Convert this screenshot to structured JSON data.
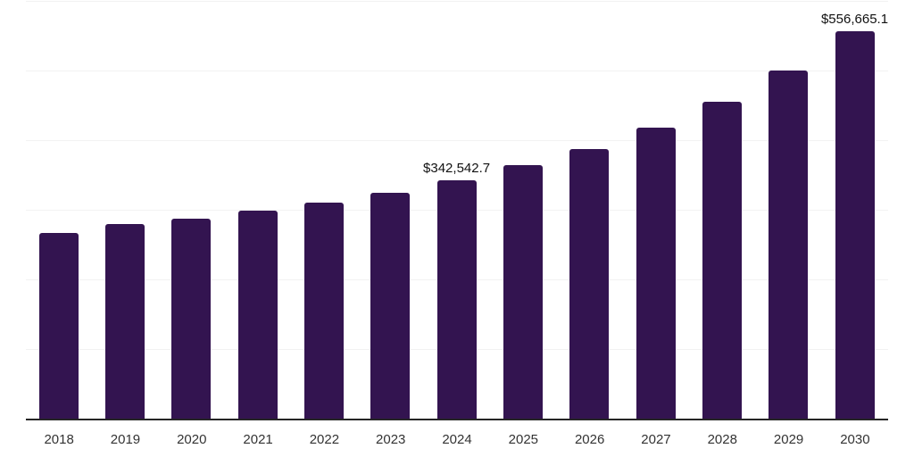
{
  "chart_data": {
    "type": "bar",
    "title": "",
    "xlabel": "",
    "ylabel": "",
    "categories": [
      "2018",
      "2019",
      "2020",
      "2021",
      "2022",
      "2023",
      "2024",
      "2025",
      "2026",
      "2027",
      "2028",
      "2029",
      "2030"
    ],
    "values": [
      266500,
      279900,
      287500,
      299100,
      310600,
      324700,
      342542.7,
      364300,
      387800,
      417800,
      455300,
      500100,
      556665.1
    ],
    "data_labels": [
      "",
      "",
      "",
      "",
      "",
      "",
      "$342,542.7",
      "",
      "",
      "",
      "",
      "",
      "$556,665.1"
    ],
    "ylim": [
      0,
      600000
    ],
    "gridline_step": 100000,
    "gridline_count": 6,
    "legend": "none",
    "y_axis_labels": "none",
    "colors": {
      "bar": "#331450",
      "gridline": "#f2f2f2",
      "axis_line": "#262626",
      "data_label_text": "#111111",
      "tick_label_text": "#333333",
      "background": "#ffffff"
    }
  }
}
